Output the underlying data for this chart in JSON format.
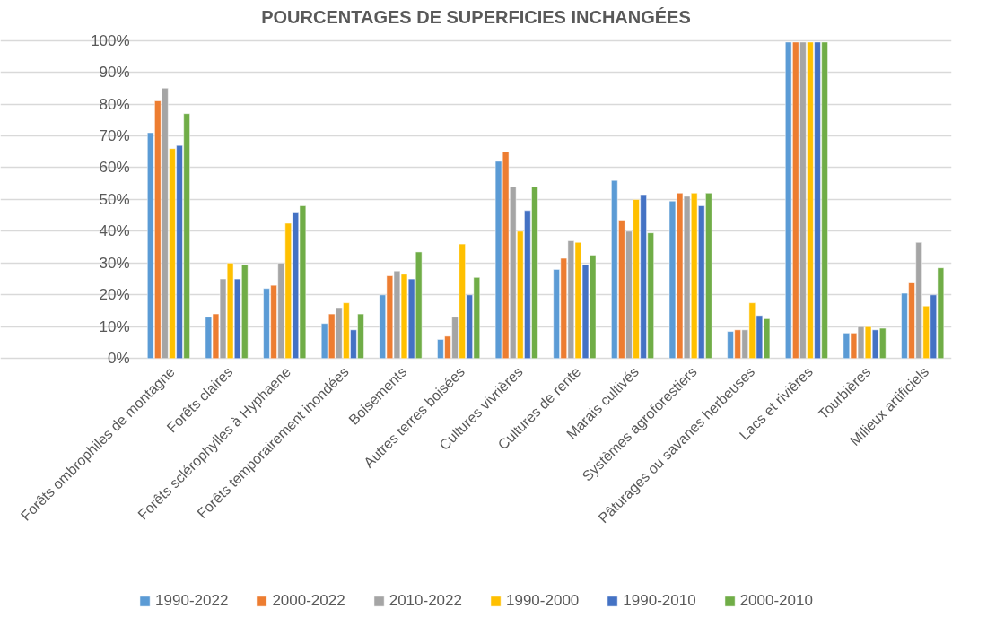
{
  "chart_data": {
    "type": "bar",
    "title": "POURCENTAGES DE SUPERFICIES INCHANGÉES",
    "categories": [
      "Forêts ombrophiles de montagne",
      "Forêts claires",
      "Forêts sclérophylles à Hyphaene",
      "Forêts temporairement inondées",
      "Boisements",
      "Autres terres boisées",
      "Cultures vivrières",
      "Cultures de rente",
      "Marais cultivés",
      "Systèmes agroforestiers",
      "Pâturages ou savanes herbeuses",
      "Lacs et rivières",
      "Tourbières",
      "Milieux artificiels"
    ],
    "series": [
      {
        "name": "1990-2022",
        "color": "#5b9bd5",
        "values": [
          71,
          13,
          22,
          11,
          20,
          6,
          62,
          28,
          56,
          49.5,
          8.5,
          99.5,
          8,
          20.5
        ]
      },
      {
        "name": "2000-2022",
        "color": "#ed7d31",
        "values": [
          81,
          14,
          23,
          14,
          26,
          7,
          65,
          31.5,
          43.5,
          52,
          9,
          99.5,
          8,
          24
        ]
      },
      {
        "name": "2010-2022",
        "color": "#a5a5a5",
        "values": [
          85,
          25,
          30,
          16,
          27.5,
          13,
          54,
          37,
          40,
          51,
          9,
          99.5,
          10,
          36.5
        ]
      },
      {
        "name": "1990-2000",
        "color": "#ffc000",
        "values": [
          66,
          30,
          42.5,
          17.5,
          26.5,
          36,
          40,
          36.5,
          50,
          52,
          17.5,
          99.5,
          10,
          16.5
        ]
      },
      {
        "name": "1990-2010",
        "color": "#4472c4",
        "values": [
          67,
          25,
          46,
          9,
          25,
          20,
          46.5,
          29.5,
          51.5,
          48,
          13.5,
          99.5,
          9,
          20
        ]
      },
      {
        "name": "2000-2010",
        "color": "#70ad47",
        "values": [
          77,
          29.5,
          48,
          14,
          33.5,
          25.5,
          54,
          32.5,
          39.5,
          52,
          12.5,
          99.5,
          9.5,
          28.5
        ]
      }
    ],
    "ylim": [
      0,
      100
    ],
    "yticks": [
      {
        "value": 0,
        "label": "0%"
      },
      {
        "value": 10,
        "label": "10%"
      },
      {
        "value": 20,
        "label": "20%"
      },
      {
        "value": 30,
        "label": "30%"
      },
      {
        "value": 40,
        "label": "40%"
      },
      {
        "value": 50,
        "label": "50%"
      },
      {
        "value": 60,
        "label": "60%"
      },
      {
        "value": 70,
        "label": "70%"
      },
      {
        "value": 80,
        "label": "80%"
      },
      {
        "value": 90,
        "label": "90%"
      },
      {
        "value": 100,
        "label": "100%"
      }
    ],
    "grid": "y",
    "legend": "bottom"
  }
}
